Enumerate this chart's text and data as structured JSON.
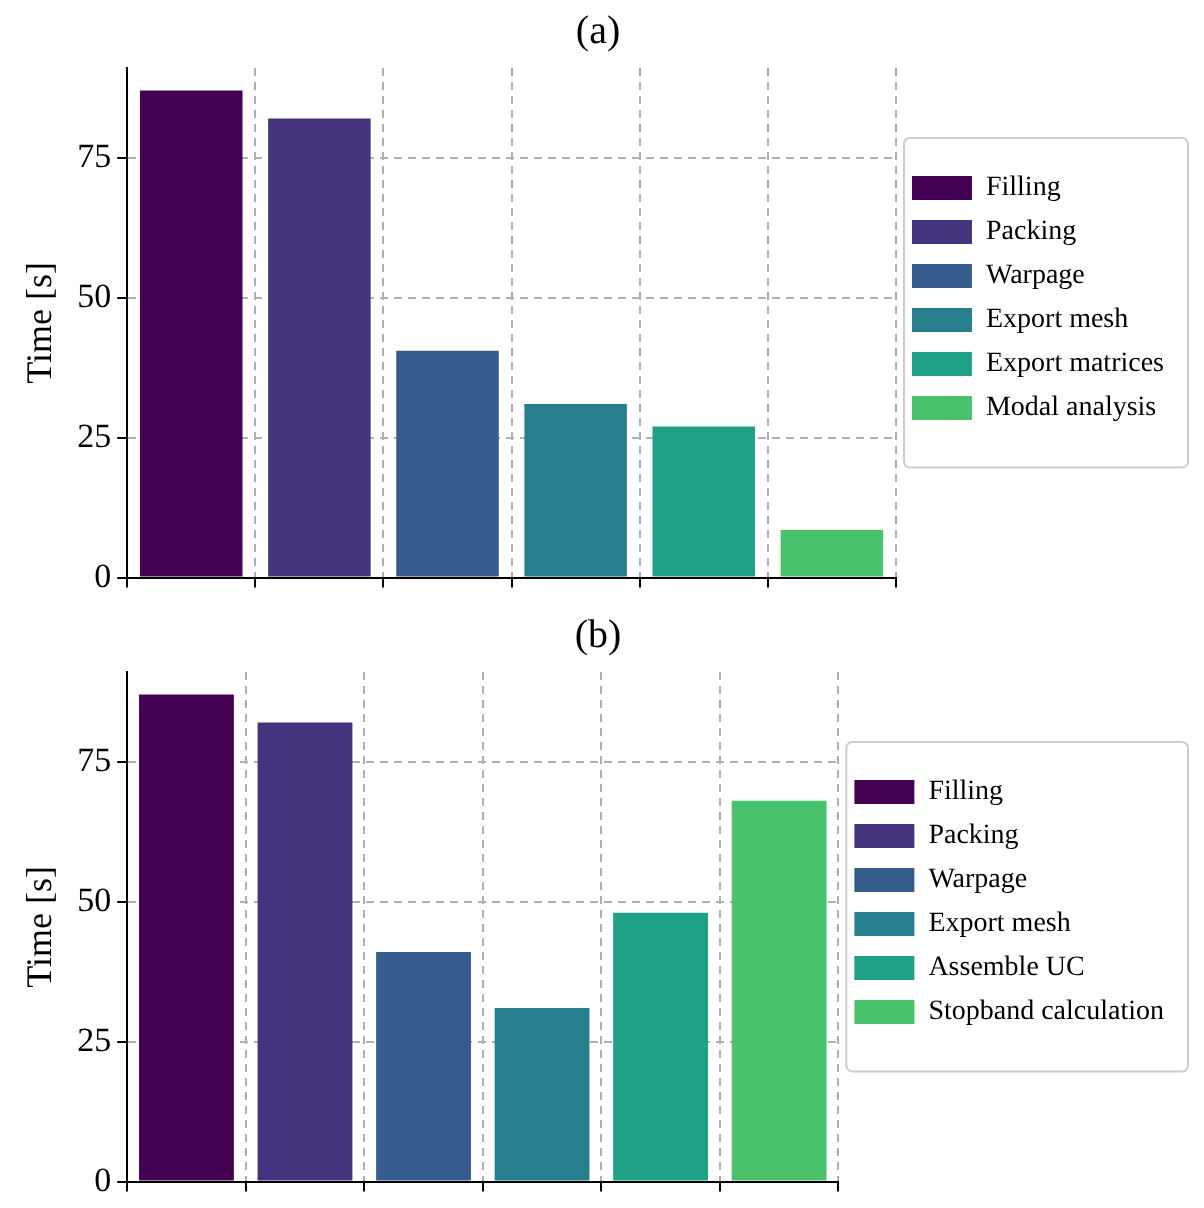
{
  "chart_data": [
    {
      "type": "bar",
      "title": "(a)",
      "ylabel": "Time [s]",
      "categories": [
        null,
        null,
        null,
        null,
        null,
        null
      ],
      "ylim": [
        0,
        91
      ],
      "yticks": [
        0,
        25,
        50,
        75
      ],
      "tick_labels": "y",
      "grid": true,
      "legend": "right",
      "series": [
        {
          "name": "Filling",
          "color": "#440154",
          "values": [
            87,
            null,
            null,
            null,
            null,
            null
          ]
        },
        {
          "name": "Packing",
          "color": "#46337e",
          "values": [
            null,
            82,
            null,
            null,
            null,
            null
          ]
        },
        {
          "name": "Warpage",
          "color": "#365c8d",
          "values": [
            null,
            null,
            40.5,
            null,
            null,
            null
          ]
        },
        {
          "name": "Export mesh",
          "color": "#277f8e",
          "values": [
            null,
            null,
            null,
            31,
            null,
            null
          ]
        },
        {
          "name": "Export matrices",
          "color": "#1fa187",
          "values": [
            null,
            null,
            null,
            null,
            27,
            null
          ]
        },
        {
          "name": "Modal analysis",
          "color": "#4ac16d",
          "values": [
            null,
            null,
            null,
            null,
            null,
            8.5
          ]
        }
      ]
    },
    {
      "type": "bar",
      "title": "(b)",
      "ylabel": "Time [s]",
      "categories": [
        null,
        null,
        null,
        null,
        null,
        null
      ],
      "ylim": [
        0,
        91
      ],
      "yticks": [
        0,
        25,
        50,
        75
      ],
      "tick_labels": "y",
      "grid": true,
      "legend": "right",
      "series": [
        {
          "name": "Filling",
          "color": "#440154",
          "values": [
            87,
            null,
            null,
            null,
            null,
            null
          ]
        },
        {
          "name": "Packing",
          "color": "#46337e",
          "values": [
            null,
            82,
            null,
            null,
            null,
            null
          ]
        },
        {
          "name": "Warpage",
          "color": "#365c8d",
          "values": [
            null,
            null,
            41,
            null,
            null,
            null
          ]
        },
        {
          "name": "Export mesh",
          "color": "#277f8e",
          "values": [
            null,
            null,
            null,
            31,
            null,
            null
          ]
        },
        {
          "name": "Assemble UC",
          "color": "#1fa187",
          "values": [
            null,
            null,
            null,
            null,
            48,
            null
          ]
        },
        {
          "name": "Stopband calculation",
          "color": "#4ac16d",
          "values": [
            null,
            null,
            null,
            null,
            null,
            68
          ]
        }
      ]
    }
  ]
}
